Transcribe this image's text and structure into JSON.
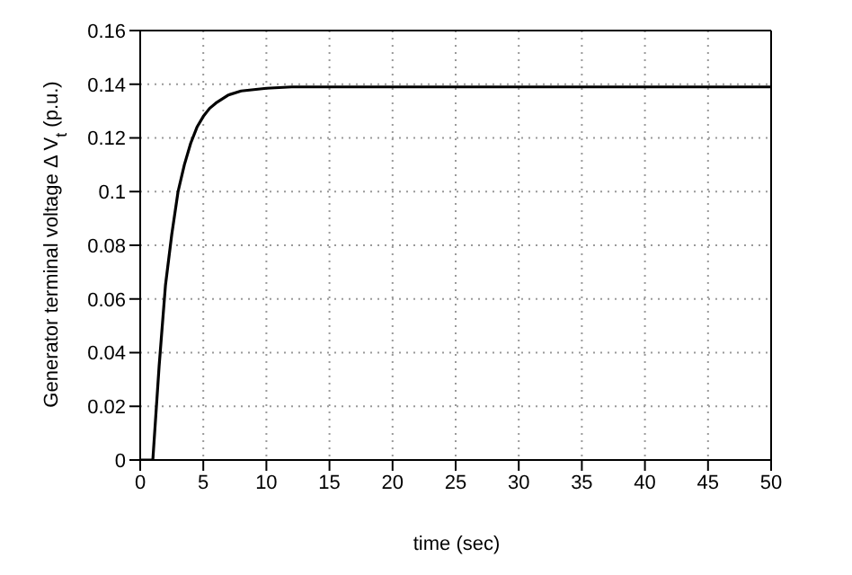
{
  "chart_data": {
    "type": "line",
    "xlabel": "time (sec)",
    "ylabel": "Generator terminal voltage Δ V$_{t}$ (p.u.)",
    "x": [
      0,
      1,
      1.5,
      2,
      2.5,
      3,
      3.5,
      4,
      4.5,
      5,
      5.5,
      6,
      7,
      8,
      9,
      10,
      12,
      15,
      20,
      30,
      40,
      50
    ],
    "series": [
      {
        "color": "#000000",
        "values": [
          0,
          0,
          0.035,
          0.065,
          0.084,
          0.1,
          0.11,
          0.118,
          0.124,
          0.128,
          0.131,
          0.133,
          0.136,
          0.1375,
          0.138,
          0.1385,
          0.139,
          0.139,
          0.139,
          0.139,
          0.139,
          0.139
        ]
      }
    ],
    "xlim": [
      0,
      50
    ],
    "xticks": [
      0,
      5,
      10,
      15,
      20,
      25,
      30,
      35,
      40,
      45,
      50
    ],
    "ylim": [
      0,
      0.16
    ],
    "yticks": [
      0,
      0.02,
      0.04,
      0.06,
      0.08,
      0.1,
      0.12,
      0.14,
      0.16
    ],
    "grid": true,
    "line_style": "solid",
    "marker": "none",
    "legend": false
  }
}
